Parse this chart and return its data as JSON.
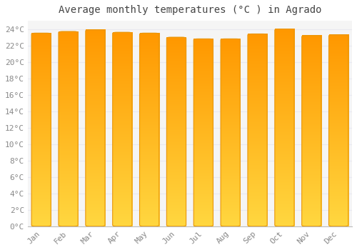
{
  "title": "Average monthly temperatures (°C ) in Agrado",
  "months": [
    "Jan",
    "Feb",
    "Mar",
    "Apr",
    "May",
    "Jun",
    "Jul",
    "Aug",
    "Sep",
    "Oct",
    "Nov",
    "Dec"
  ],
  "values": [
    23.5,
    23.7,
    23.9,
    23.6,
    23.5,
    23.0,
    22.8,
    22.8,
    23.4,
    24.0,
    23.2,
    23.3
  ],
  "bar_color_center": "#FFA500",
  "bar_color_edge": "#E8960A",
  "background_color": "#FFFFFF",
  "plot_bg_color": "#F5F5F5",
  "grid_color": "#E8E8F0",
  "title_color": "#444444",
  "tick_color": "#888888",
  "ylim": [
    0,
    25
  ],
  "yticks": [
    0,
    2,
    4,
    6,
    8,
    10,
    12,
    14,
    16,
    18,
    20,
    22,
    24
  ],
  "title_fontsize": 10,
  "tick_fontsize": 8
}
